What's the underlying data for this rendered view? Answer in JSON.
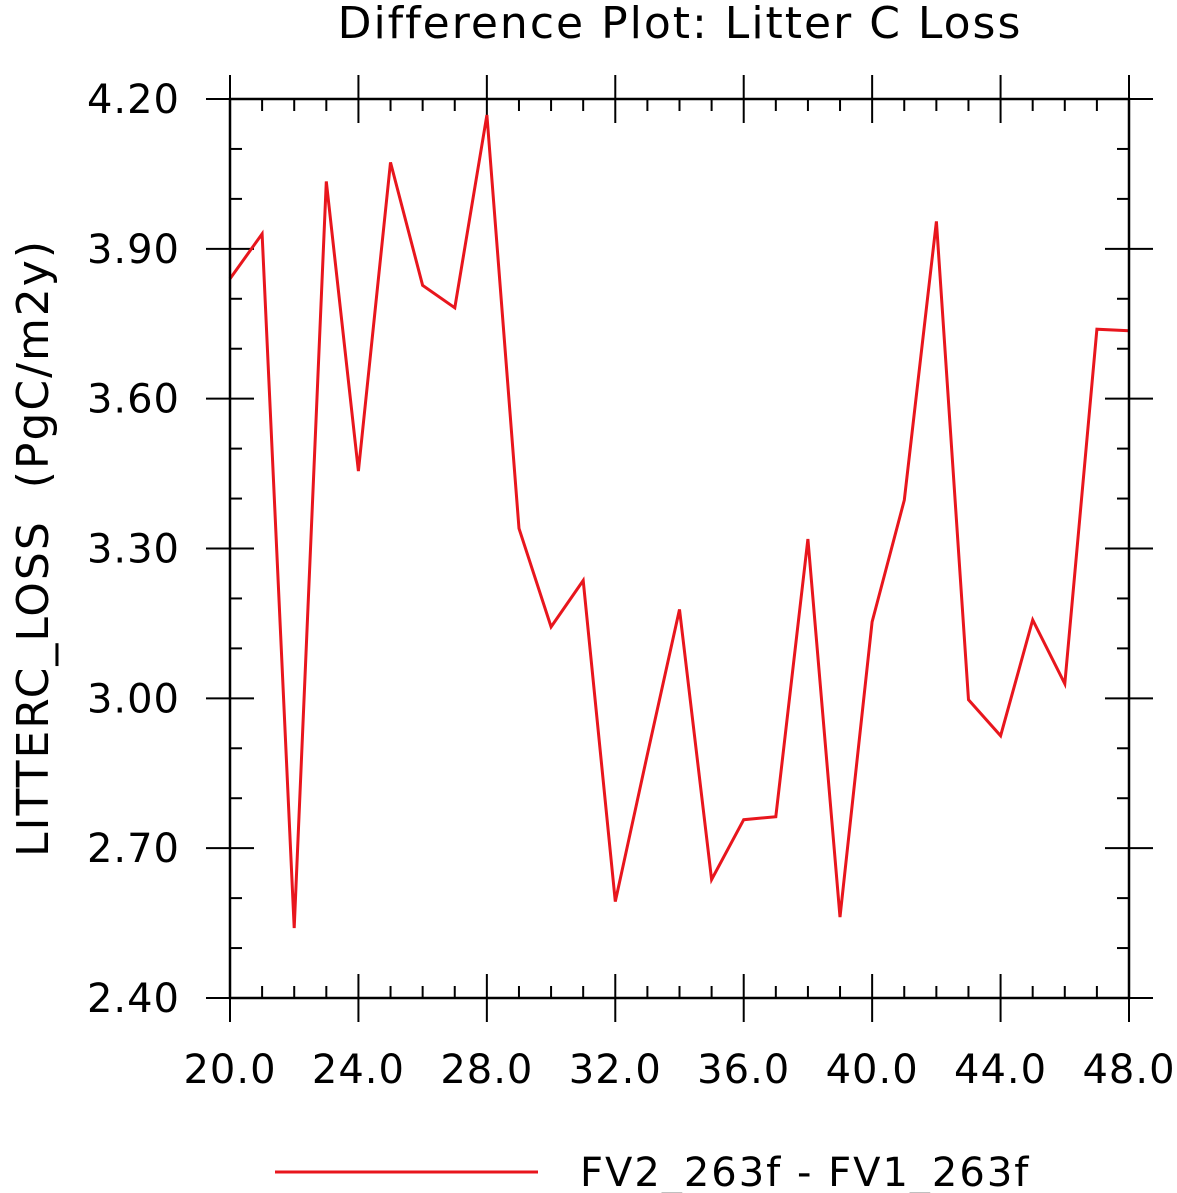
{
  "chart_data": {
    "type": "line",
    "title": "Difference Plot: Litter C Loss",
    "xlabel": "",
    "ylabel": "LITTERC_LOSS  (PgC/m2y)",
    "xlim": [
      20,
      48
    ],
    "ylim": [
      2.4,
      4.2
    ],
    "x_ticks": [
      "20.0",
      "24.0",
      "28.0",
      "32.0",
      "36.0",
      "40.0",
      "44.0",
      "48.0"
    ],
    "y_ticks": [
      "2.40",
      "2.70",
      "3.00",
      "3.30",
      "3.60",
      "3.90",
      "4.20"
    ],
    "grid": false,
    "legend_position": "bottom",
    "series": [
      {
        "name": "FV2_263f - FV1_263f",
        "color": "#e8161d",
        "x": [
          20,
          21,
          22,
          23,
          24,
          25,
          26,
          27,
          28,
          29,
          30,
          31,
          32,
          33,
          34,
          35,
          36,
          37,
          38,
          39,
          40,
          41,
          42,
          43,
          44,
          45,
          46,
          47,
          48
        ],
        "y": [
          3.84,
          3.93,
          2.54,
          4.035,
          3.455,
          4.073,
          3.827,
          3.782,
          4.168,
          3.34,
          3.143,
          3.236,
          2.593,
          2.888,
          3.178,
          2.637,
          2.757,
          2.763,
          3.319,
          2.562,
          3.153,
          3.397,
          3.955,
          2.997,
          2.925,
          3.157,
          3.029,
          3.739,
          3.736
        ]
      }
    ]
  }
}
